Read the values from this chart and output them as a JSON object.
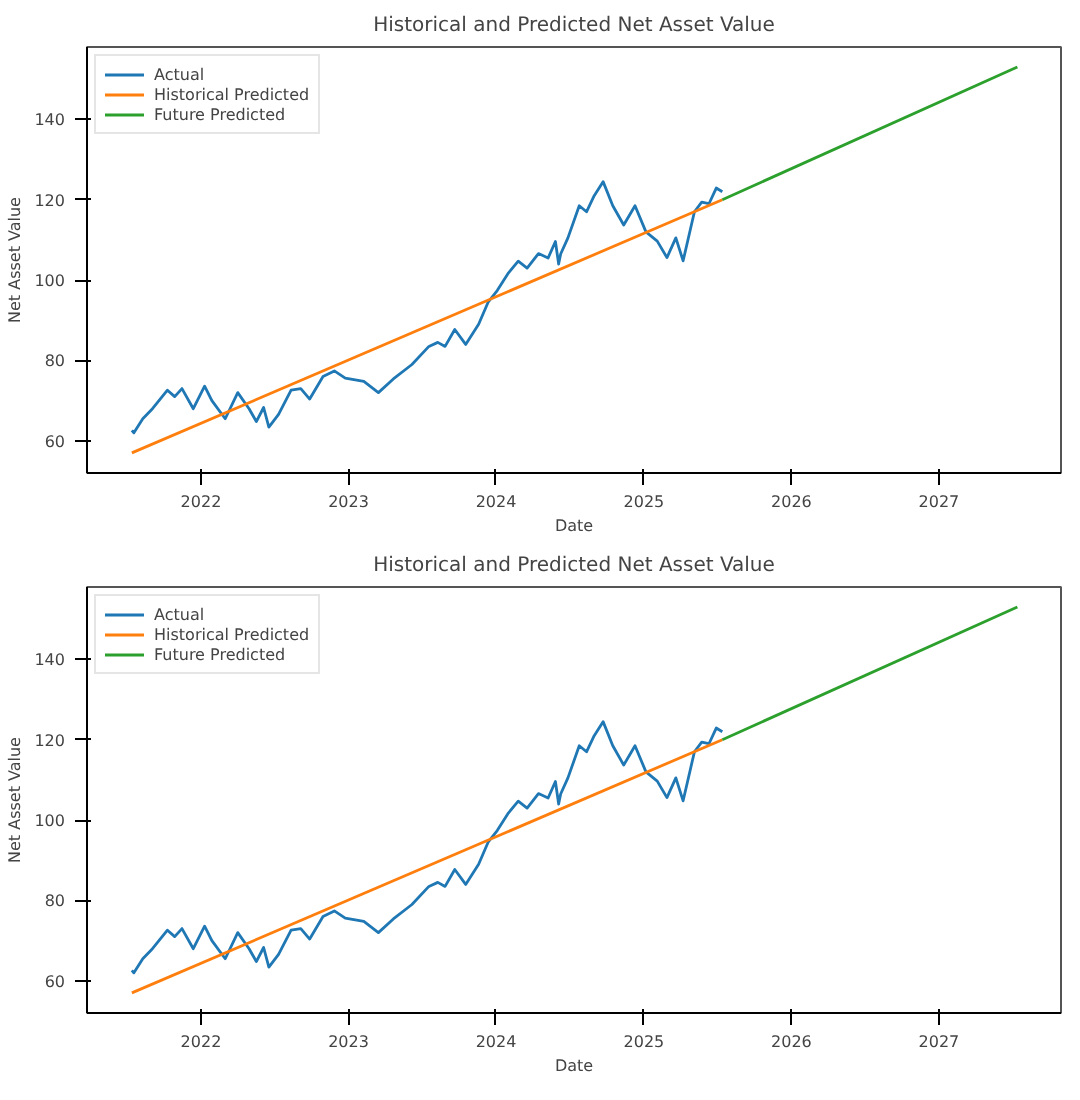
{
  "chart_data": [
    {
      "type": "line",
      "title": "Historical and Predicted Net Asset Value",
      "xlabel": "Date",
      "ylabel": "Net Asset Value",
      "xlim": [
        "2021-03-25",
        "2027-10-30"
      ],
      "xticks": [
        "2022",
        "2023",
        "2024",
        "2025",
        "2026",
        "2027"
      ],
      "ylim": [
        52,
        158
      ],
      "yticks": [
        60,
        80,
        100,
        120,
        140
      ],
      "grid": false,
      "legend": "top left",
      "line_style": "solid",
      "series": [
        {
          "name": "Actual",
          "color": "#1f77b4",
          "x": [
            "2021-07-14",
            "2021-07-19",
            "2021-08-10",
            "2021-09-03",
            "2021-10-10",
            "2021-10-28",
            "2021-11-15",
            "2021-12-13",
            "2022-01-10",
            "2022-01-28",
            "2022-03-02",
            "2022-04-02",
            "2022-04-30",
            "2022-05-18",
            "2022-06-05",
            "2022-06-18",
            "2022-07-12",
            "2022-08-12",
            "2022-09-05",
            "2022-09-27",
            "2022-10-30",
            "2022-11-27",
            "2022-12-24",
            "2023-02-08",
            "2023-03-16",
            "2023-04-22",
            "2023-06-07",
            "2023-07-19",
            "2023-08-10",
            "2023-08-28",
            "2023-09-21",
            "2023-10-18",
            "2023-11-19",
            "2023-12-13",
            "2024-01-04",
            "2024-02-01",
            "2024-02-25",
            "2024-03-18",
            "2024-04-15",
            "2024-05-09",
            "2024-05-27",
            "2024-06-04",
            "2024-06-09",
            "2024-06-27",
            "2024-07-25",
            "2024-08-12",
            "2024-08-31",
            "2024-09-22",
            "2024-10-16",
            "2024-11-12",
            "2024-12-10",
            "2025-01-06",
            "2025-02-03",
            "2025-02-27",
            "2025-03-21",
            "2025-04-08",
            "2025-05-06",
            "2025-05-24",
            "2025-06-11",
            "2025-06-29",
            "2025-07-14"
          ],
          "values": [
            62.6,
            62,
            65.5,
            68,
            72.6,
            71,
            73,
            68,
            73.6,
            70,
            65.5,
            72,
            68,
            64.8,
            68.3,
            63.4,
            66.6,
            72.6,
            73,
            70.4,
            76,
            77.4,
            75.6,
            74.8,
            72,
            75.4,
            79,
            83.5,
            84.5,
            83.5,
            87.7,
            84,
            89,
            94.6,
            97.4,
            101.8,
            104.7,
            103,
            106.6,
            105.5,
            109.6,
            104,
            106.5,
            110.5,
            118.5,
            117,
            121,
            124.5,
            118.5,
            113.7,
            118.5,
            112,
            109.7,
            105.6,
            110.5,
            104.8,
            117,
            119.4,
            119,
            122.9,
            122
          ]
        },
        {
          "name": "Historical Predicted",
          "color": "#ff7f0e",
          "x": [
            "2021-07-14",
            "2025-07-14"
          ],
          "values": [
            57,
            120
          ]
        },
        {
          "name": "Future Predicted",
          "color": "#2ca02c",
          "x": [
            "2025-07-14",
            "2027-07-14"
          ],
          "values": [
            120,
            153
          ]
        }
      ]
    },
    {
      "type": "line",
      "title": "Historical and Predicted Net Asset Value",
      "xlabel": "Date",
      "ylabel": "Net Asset Value",
      "xlim": [
        "2021-03-25",
        "2027-10-30"
      ],
      "xticks": [
        "2022",
        "2023",
        "2024",
        "2025",
        "2026",
        "2027"
      ],
      "ylim": [
        52,
        158
      ],
      "yticks": [
        60,
        80,
        100,
        120,
        140
      ],
      "grid": false,
      "legend": "top left",
      "line_style": "solid",
      "series": [
        {
          "name": "Actual",
          "color": "#1f77b4",
          "x": [
            "2021-07-14",
            "2021-07-19",
            "2021-08-10",
            "2021-09-03",
            "2021-10-10",
            "2021-10-28",
            "2021-11-15",
            "2021-12-13",
            "2022-01-10",
            "2022-01-28",
            "2022-03-02",
            "2022-04-02",
            "2022-04-30",
            "2022-05-18",
            "2022-06-05",
            "2022-06-18",
            "2022-07-12",
            "2022-08-12",
            "2022-09-05",
            "2022-09-27",
            "2022-10-30",
            "2022-11-27",
            "2022-12-24",
            "2023-02-08",
            "2023-03-16",
            "2023-04-22",
            "2023-06-07",
            "2023-07-19",
            "2023-08-10",
            "2023-08-28",
            "2023-09-21",
            "2023-10-18",
            "2023-11-19",
            "2023-12-13",
            "2024-01-04",
            "2024-02-01",
            "2024-02-25",
            "2024-03-18",
            "2024-04-15",
            "2024-05-09",
            "2024-05-27",
            "2024-06-04",
            "2024-06-09",
            "2024-06-27",
            "2024-07-25",
            "2024-08-12",
            "2024-08-31",
            "2024-09-22",
            "2024-10-16",
            "2024-11-12",
            "2024-12-10",
            "2025-01-06",
            "2025-02-03",
            "2025-02-27",
            "2025-03-21",
            "2025-04-08",
            "2025-05-06",
            "2025-05-24",
            "2025-06-11",
            "2025-06-29",
            "2025-07-14"
          ],
          "values": [
            62.6,
            62,
            65.5,
            68,
            72.6,
            71,
            73,
            68,
            73.6,
            70,
            65.5,
            72,
            68,
            64.8,
            68.3,
            63.4,
            66.6,
            72.6,
            73,
            70.4,
            76,
            77.4,
            75.6,
            74.8,
            72,
            75.4,
            79,
            83.5,
            84.5,
            83.5,
            87.7,
            84,
            89,
            94.6,
            97.4,
            101.8,
            104.7,
            103,
            106.6,
            105.5,
            109.6,
            104,
            106.5,
            110.5,
            118.5,
            117,
            121,
            124.5,
            118.5,
            113.7,
            118.5,
            112,
            109.7,
            105.6,
            110.5,
            104.8,
            117,
            119.4,
            119,
            122.9,
            122
          ]
        },
        {
          "name": "Historical Predicted",
          "color": "#ff7f0e",
          "x": [
            "2021-07-14",
            "2025-07-14"
          ],
          "values": [
            57,
            120
          ]
        },
        {
          "name": "Future Predicted",
          "color": "#2ca02c",
          "x": [
            "2025-07-14",
            "2027-07-14"
          ],
          "values": [
            120,
            153
          ]
        }
      ]
    }
  ]
}
